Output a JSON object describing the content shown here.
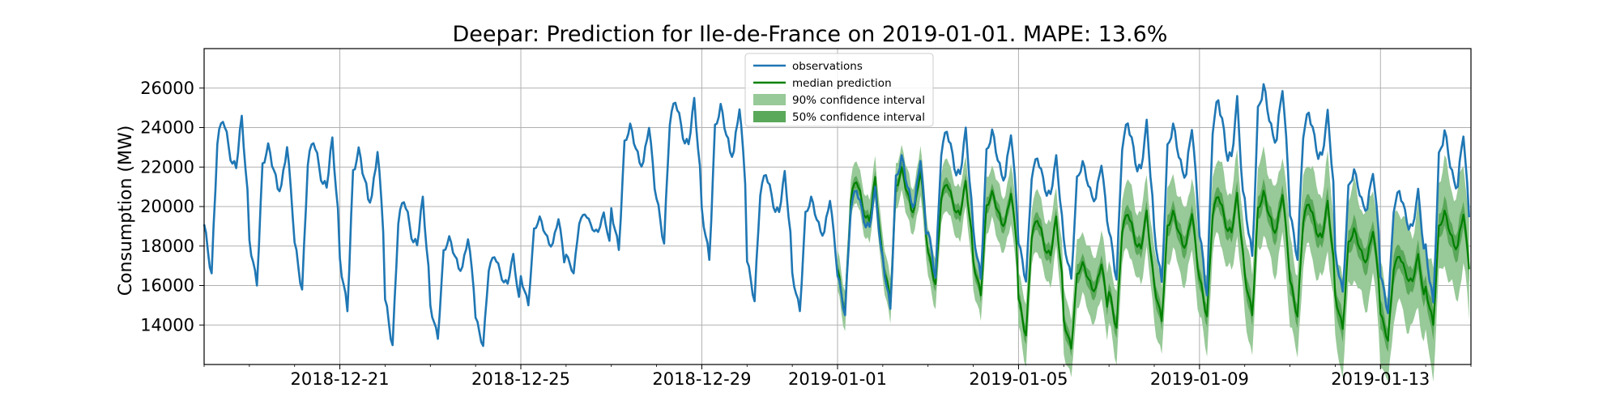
{
  "chart_data": {
    "type": "line",
    "title": "Deepar: Prediction for Ile-de-France on 2019-01-01. MAPE: 13.6%",
    "xlabel": "",
    "ylabel": "Consumption (MW)",
    "xlim": [
      "2018-12-18",
      "2019-01-15"
    ],
    "ylim": [
      12000,
      28000
    ],
    "x_ticks": [
      "2018-12-21",
      "2018-12-25",
      "2018-12-29",
      "2019-01-01",
      "2019-01-05",
      "2019-01-09",
      "2019-01-13"
    ],
    "y_ticks": [
      14000,
      16000,
      18000,
      20000,
      22000,
      24000,
      26000
    ],
    "grid": true,
    "legend": {
      "position": "top-center",
      "entries": [
        {
          "label": "observations",
          "color": "#1f77b4",
          "kind": "line"
        },
        {
          "label": "median prediction",
          "color": "#008000",
          "kind": "line"
        },
        {
          "label": "90% confidence interval",
          "color": "#98c998",
          "kind": "band"
        },
        {
          "label": "50% confidence interval",
          "color": "#5aa85a",
          "kind": "band"
        }
      ]
    },
    "series": [
      {
        "name": "observations",
        "color": "#1f77b4",
        "x": [
          "2018-12-18",
          "2018-12-19",
          "2018-12-20",
          "2018-12-21",
          "2018-12-22",
          "2018-12-23",
          "2018-12-24",
          "2018-12-25",
          "2018-12-26",
          "2018-12-27",
          "2018-12-28",
          "2018-12-29",
          "2018-12-30",
          "2018-12-31",
          "2019-01-01",
          "2019-01-02",
          "2019-01-03",
          "2019-01-04",
          "2019-01-05",
          "2019-01-06",
          "2019-01-07",
          "2019-01-08",
          "2019-01-09",
          "2019-01-10",
          "2019-01-11",
          "2019-01-12",
          "2019-01-13",
          "2019-01-14"
        ],
        "daily_min": [
          16500,
          16000,
          15700,
          14700,
          12900,
          13300,
          12900,
          15000,
          16600,
          17800,
          18100,
          17300,
          15200,
          14700,
          14500,
          14800,
          16400,
          16300,
          16200,
          16300,
          16300,
          16100,
          15500,
          17400,
          17300,
          15600,
          14600,
          15000
        ],
        "daily_max": [
          24600,
          23200,
          23500,
          23000,
          20500,
          18500,
          17600,
          19500,
          19700,
          24200,
          25500,
          25200,
          21800,
          20500,
          21000,
          22600,
          24000,
          23900,
          22600,
          22300,
          24400,
          24200,
          25600,
          26200,
          24900,
          21900,
          20900,
          23900
        ]
      },
      {
        "name": "median prediction",
        "color": "#008000",
        "x": [
          "2019-01-01",
          "2019-01-02",
          "2019-01-03",
          "2019-01-04",
          "2019-01-05",
          "2019-01-06",
          "2019-01-07",
          "2019-01-08",
          "2019-01-09",
          "2019-01-10",
          "2019-01-11",
          "2019-01-12",
          "2019-01-13",
          "2019-01-14"
        ],
        "daily_min": [
          14600,
          15200,
          16000,
          15500,
          13400,
          12800,
          13800,
          14200,
          14400,
          14500,
          14400,
          13800,
          13200,
          14000
        ],
        "daily_max": [
          21500,
          22000,
          21300,
          20800,
          19500,
          17200,
          19800,
          19800,
          20700,
          20800,
          20300,
          18900,
          17600,
          19800
        ]
      }
    ],
    "intervals": {
      "ci90_half_width_range": [
        1000,
        3000
      ],
      "ci50_half_width_range": [
        300,
        800
      ]
    }
  }
}
